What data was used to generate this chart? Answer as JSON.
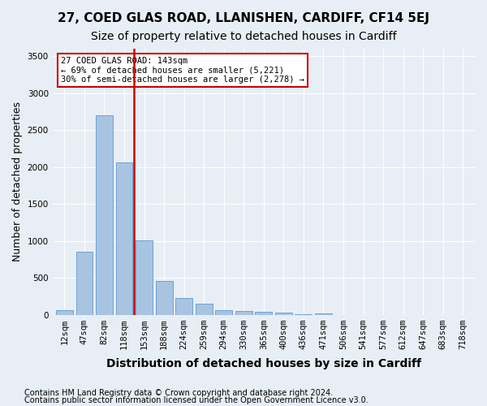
{
  "title1": "27, COED GLAS ROAD, LLANISHEN, CARDIFF, CF14 5EJ",
  "title2": "Size of property relative to detached houses in Cardiff",
  "xlabel": "Distribution of detached houses by size in Cardiff",
  "ylabel": "Number of detached properties",
  "categories": [
    "12sqm",
    "47sqm",
    "82sqm",
    "118sqm",
    "153sqm",
    "188sqm",
    "224sqm",
    "259sqm",
    "294sqm",
    "330sqm",
    "365sqm",
    "400sqm",
    "436sqm",
    "471sqm",
    "506sqm",
    "541sqm",
    "577sqm",
    "612sqm",
    "647sqm",
    "683sqm",
    "718sqm"
  ],
  "values": [
    60,
    850,
    2700,
    2060,
    1005,
    455,
    230,
    145,
    60,
    55,
    35,
    25,
    5,
    20,
    0,
    0,
    0,
    0,
    0,
    0,
    0
  ],
  "bar_color": "#a8c4e0",
  "bar_edgecolor": "#5b9bd5",
  "vline_color": "#cc0000",
  "vline_x": 3.5,
  "annotation_text": "27 COED GLAS ROAD: 143sqm\n← 69% of detached houses are smaller (5,221)\n30% of semi-detached houses are larger (2,278) →",
  "annotation_box_color": "#ffffff",
  "annotation_box_edgecolor": "#cc0000",
  "ylim": [
    0,
    3600
  ],
  "yticks": [
    0,
    500,
    1000,
    1500,
    2000,
    2500,
    3000,
    3500
  ],
  "background_color": "#e8eef5",
  "plot_bg_color": "#e8eef5",
  "grid_color": "#ffffff",
  "footer1": "Contains HM Land Registry data © Crown copyright and database right 2024.",
  "footer2": "Contains public sector information licensed under the Open Government Licence v3.0.",
  "title1_fontsize": 11,
  "title2_fontsize": 10,
  "xlabel_fontsize": 10,
  "ylabel_fontsize": 9,
  "tick_fontsize": 7.5,
  "footer_fontsize": 7
}
